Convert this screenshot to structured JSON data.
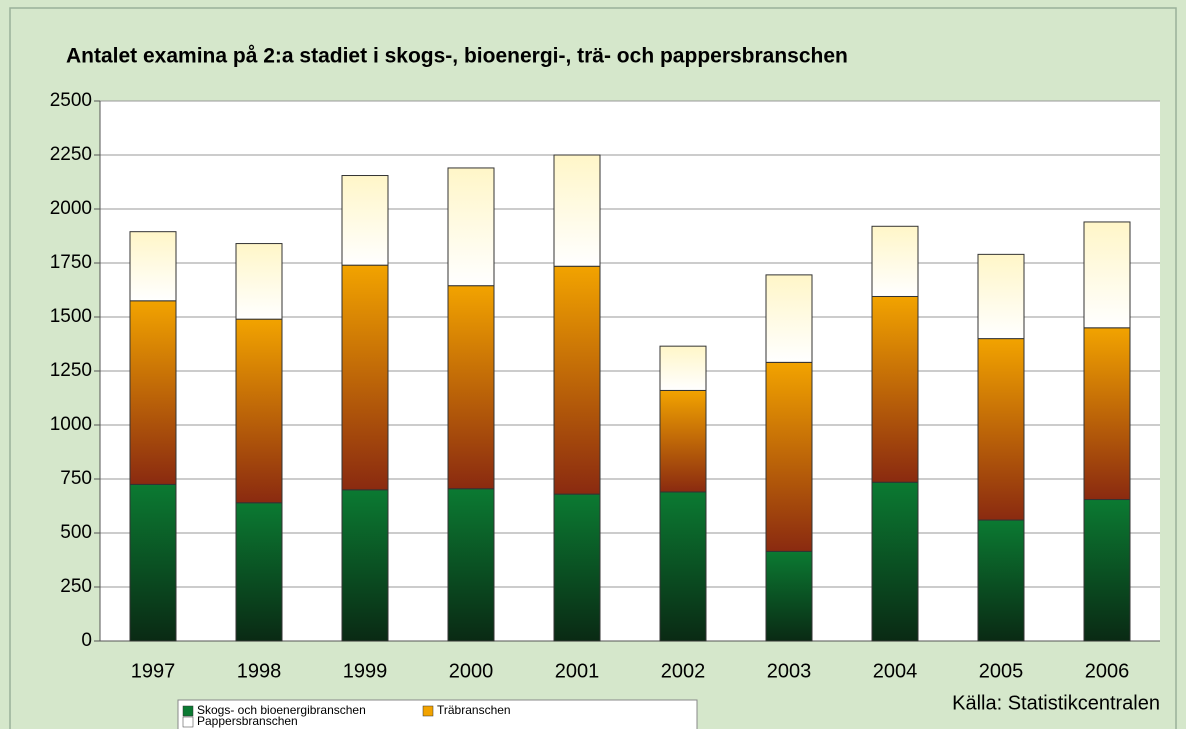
{
  "chart_data": {
    "type": "stacked_bar",
    "title": "Antalet examina på 2:a stadiet i skogs-, bioenergi-, trä- och pappersbranschen",
    "source": "Källa: Statistikcentralen",
    "categories": [
      "1997",
      "1998",
      "1999",
      "2000",
      "2001",
      "2002",
      "2003",
      "2004",
      "2005",
      "2006"
    ],
    "series": [
      {
        "name": "Skogs- och bioenergibranschen",
        "color": "#0b7a32",
        "values": [
          725,
          640,
          700,
          705,
          680,
          690,
          415,
          735,
          560,
          655
        ]
      },
      {
        "name": "Träbranschen",
        "color": "#f2a300",
        "values": [
          850,
          850,
          1040,
          940,
          1055,
          470,
          875,
          860,
          840,
          795
        ]
      },
      {
        "name": "Pappersbranschen",
        "color": "#ffffff",
        "values": [
          320,
          350,
          415,
          545,
          515,
          205,
          405,
          325,
          390,
          490
        ]
      }
    ],
    "ylim": [
      0,
      2500
    ],
    "yticks": [
      0,
      250,
      500,
      750,
      1000,
      1250,
      1500,
      1750,
      2000,
      2250,
      2500
    ],
    "grid": true
  }
}
